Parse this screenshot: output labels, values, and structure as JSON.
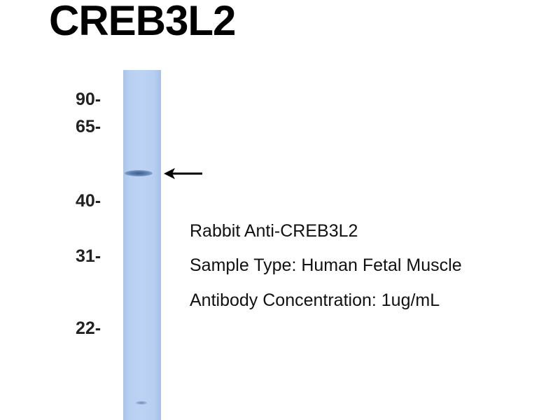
{
  "title": "CREB3L2",
  "markers": [
    {
      "label": "90-"
    },
    {
      "label": "65-"
    },
    {
      "label": "40-"
    },
    {
      "label": "31-"
    },
    {
      "label": "22-"
    }
  ],
  "captions": [
    "Rabbit Anti-CREB3L2",
    "Sample Type: Human Fetal Muscle",
    "Antibody Concentration: 1ug/mL"
  ],
  "colors": {
    "lane": "#bdd3f4",
    "band": "#3b5e8f",
    "text": "#000000"
  },
  "icons": {
    "arrow": "left-arrow-icon"
  }
}
